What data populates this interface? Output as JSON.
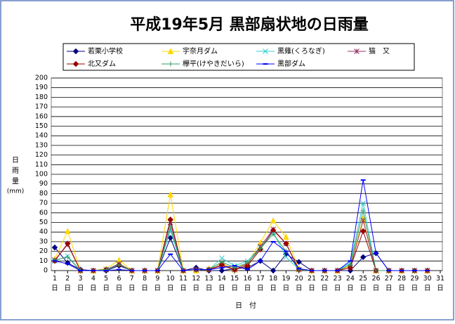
{
  "chart_data": {
    "type": "line",
    "title": "平成19年5月  黒部扇状地の日雨量",
    "ylabel": "日雨量",
    "ylabel_unit": "(mm)",
    "xlabel": "日　付",
    "x": [
      1,
      2,
      3,
      4,
      5,
      6,
      7,
      8,
      9,
      10,
      11,
      12,
      13,
      14,
      15,
      16,
      17,
      18,
      19,
      20,
      21,
      22,
      23,
      24,
      25,
      26,
      27,
      28,
      29,
      30,
      31
    ],
    "xlim": [
      1,
      31
    ],
    "xticks": [
      {
        "value": 1,
        "label": "1日"
      },
      {
        "value": 2,
        "label": "2日"
      },
      {
        "value": 3,
        "label": "3日"
      },
      {
        "value": 4,
        "label": "4日"
      },
      {
        "value": 5,
        "label": "5日"
      },
      {
        "value": 6,
        "label": "6日"
      },
      {
        "value": 7,
        "label": "7日"
      },
      {
        "value": 8,
        "label": "8日"
      },
      {
        "value": 9,
        "label": "9日"
      },
      {
        "value": 10,
        "label": "10日"
      },
      {
        "value": 11,
        "label": "11日"
      },
      {
        "value": 12,
        "label": "12日"
      },
      {
        "value": 13,
        "label": "13日"
      },
      {
        "value": 14,
        "label": "14日"
      },
      {
        "value": 15,
        "label": "15日"
      },
      {
        "value": 16,
        "label": "16日"
      },
      {
        "value": 17,
        "label": "17日"
      },
      {
        "value": 18,
        "label": "18日"
      },
      {
        "value": 19,
        "label": "19日"
      },
      {
        "value": 20,
        "label": "20日"
      },
      {
        "value": 21,
        "label": "21日"
      },
      {
        "value": 22,
        "label": "22日"
      },
      {
        "value": 23,
        "label": "23日"
      },
      {
        "value": 24,
        "label": "24日"
      },
      {
        "value": 25,
        "label": "25日"
      },
      {
        "value": 26,
        "label": "26日"
      },
      {
        "value": 27,
        "label": "27日"
      },
      {
        "value": 28,
        "label": "28日"
      },
      {
        "value": 29,
        "label": "29日"
      },
      {
        "value": 30,
        "label": "30日"
      },
      {
        "value": 31,
        "label": "31日"
      }
    ],
    "ylim": [
      0,
      200
    ],
    "yticks": [
      0,
      10,
      20,
      30,
      40,
      50,
      60,
      70,
      80,
      90,
      100,
      110,
      120,
      130,
      140,
      150,
      160,
      170,
      180,
      190,
      200
    ],
    "grid": true,
    "series": [
      {
        "name": "若栗小学校",
        "color": "#000080",
        "marker": "diamond",
        "values": [
          24,
          8,
          1,
          0,
          0,
          5,
          0,
          0,
          0,
          34,
          0,
          3,
          0,
          0,
          2,
          3,
          10,
          0,
          17,
          9,
          0,
          0,
          0,
          0,
          14,
          18,
          0,
          0,
          0,
          0,
          null
        ]
      },
      {
        "name": "宇奈月ダム",
        "color": "#FFD700",
        "marker": "triangle",
        "values": [
          12,
          41,
          0,
          0,
          2,
          11,
          0,
          0,
          0,
          79,
          0,
          0,
          2,
          8,
          1,
          8,
          29,
          52,
          35,
          2,
          0,
          0,
          0,
          5,
          54,
          0,
          0,
          0,
          0,
          0,
          null
        ]
      },
      {
        "name": "黒薙(くろなぎ)",
        "color": "#33CCCC",
        "marker": "x",
        "values": [
          10,
          15,
          0,
          0,
          1,
          7,
          0,
          0,
          0,
          42,
          0,
          1,
          1,
          13,
          5,
          10,
          24,
          40,
          14,
          1,
          0,
          0,
          0,
          8,
          70,
          0,
          0,
          0,
          0,
          0,
          null
        ]
      },
      {
        "name": "猫　又",
        "color": "#993366",
        "marker": "star",
        "values": [
          11,
          27,
          0,
          0,
          1,
          7,
          0,
          0,
          0,
          50,
          0,
          1,
          1,
          5,
          1,
          7,
          25,
          43,
          28,
          1,
          0,
          0,
          0,
          3,
          52,
          0,
          0,
          0,
          0,
          0,
          null
        ]
      },
      {
        "name": "北又ダム",
        "color": "#990000",
        "marker": "diamond",
        "values": [
          10,
          28,
          0,
          0,
          1,
          6,
          0,
          0,
          0,
          53,
          0,
          1,
          1,
          6,
          1,
          5,
          22,
          42,
          28,
          1,
          0,
          0,
          0,
          3,
          41,
          0,
          0,
          0,
          0,
          0,
          null
        ]
      },
      {
        "name": "欅平(けやきだいら)",
        "color": "#339966",
        "marker": "plus",
        "values": [
          11,
          14,
          0,
          0,
          1,
          6,
          0,
          0,
          0,
          45,
          0,
          1,
          1,
          9,
          3,
          8,
          23,
          38,
          20,
          1,
          0,
          0,
          0,
          6,
          62,
          0,
          0,
          0,
          0,
          0,
          null
        ]
      },
      {
        "name": "黒部ダム",
        "color": "#0000FF",
        "marker": "dash",
        "values": [
          10,
          7,
          0,
          0,
          0,
          1,
          0,
          0,
          0,
          17,
          0,
          1,
          1,
          3,
          5,
          1,
          10,
          30,
          20,
          2,
          0,
          0,
          0,
          10,
          94,
          18,
          0,
          0,
          0,
          0,
          null
        ]
      }
    ]
  }
}
